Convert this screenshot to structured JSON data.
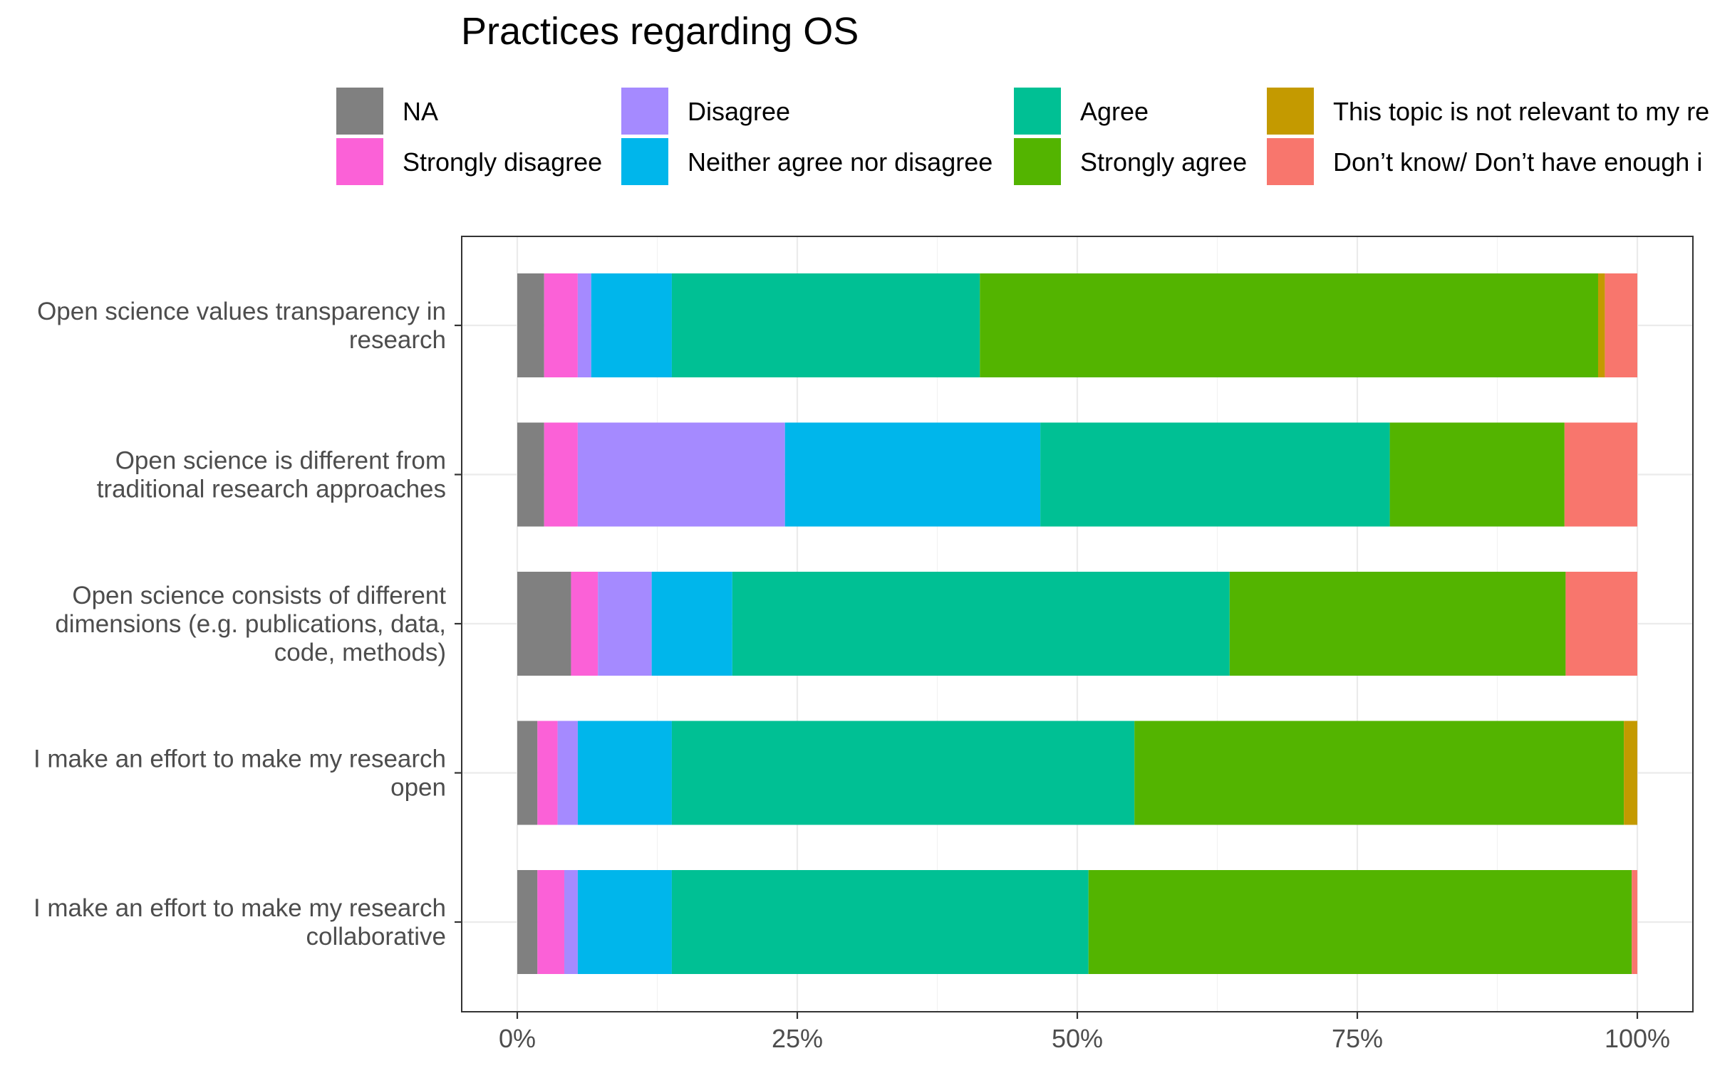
{
  "chart_data": {
    "type": "bar",
    "orientation": "horizontal",
    "stacked": true,
    "title": "Practices regarding OS",
    "xlabel": "",
    "ylabel": "",
    "xlim": [
      0,
      100
    ],
    "x_ticks": [
      "0%",
      "25%",
      "50%",
      "75%",
      "100%"
    ],
    "grid": true,
    "legend_position": "top",
    "categories": [
      [
        "Open science values transparency in",
        "research"
      ],
      [
        "Open science is different from",
        "traditional research approaches"
      ],
      [
        "Open science consists of different",
        "dimensions (e.g. publications, data,",
        "code, methods)"
      ],
      [
        "I make an effort to make my research",
        "open"
      ],
      [
        "I make an effort to make my research",
        "collaborative"
      ]
    ],
    "series": [
      {
        "name": "NA",
        "color": "#808080",
        "values": [
          2.4,
          2.4,
          4.8,
          1.8,
          1.8
        ]
      },
      {
        "name": "Strongly disagree",
        "color": "#FB61D7",
        "values": [
          3.0,
          3.0,
          2.4,
          1.8,
          2.4
        ]
      },
      {
        "name": "Disagree",
        "color": "#A58AFF",
        "values": [
          1.2,
          18.5,
          4.8,
          1.8,
          1.2
        ]
      },
      {
        "name": "Neither agree nor disagree",
        "color": "#00B6EB",
        "values": [
          7.2,
          22.8,
          7.2,
          8.4,
          8.4
        ]
      },
      {
        "name": "Agree",
        "color": "#00C094",
        "values": [
          27.5,
          31.2,
          44.4,
          41.3,
          37.2
        ]
      },
      {
        "name": "Strongly agree",
        "color": "#53B400",
        "values": [
          55.2,
          15.6,
          30.0,
          43.7,
          48.5
        ]
      },
      {
        "name": "This topic is not relevant to my re",
        "color": "#C49A00",
        "values": [
          0.6,
          0.0,
          0.0,
          1.2,
          0.0
        ]
      },
      {
        "name": "Don’t know/ Don’t have enough i",
        "color": "#F8766D",
        "values": [
          2.9,
          6.5,
          6.4,
          0.0,
          0.5
        ]
      }
    ]
  }
}
